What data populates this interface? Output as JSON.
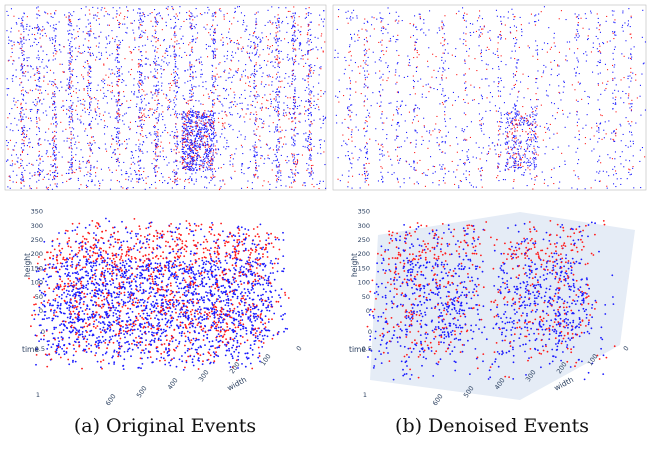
{
  "figure": {
    "panels": [
      {
        "caption": "(a) Original Events",
        "plot": {
          "vertical_label": "height",
          "vertical_ticks": [
            "0",
            "50",
            "100",
            "150",
            "200",
            "250",
            "300",
            "350"
          ],
          "time_label": "time",
          "time_ticks": [
            "0",
            "0.5",
            "1"
          ],
          "width_label": "width",
          "width_ticks": [
            "0",
            "100",
            "200",
            "300",
            "400",
            "500",
            "600"
          ]
        }
      },
      {
        "caption": "(b) Denoised Events",
        "plot": {
          "vertical_label": "height",
          "vertical_ticks": [
            "0",
            "50",
            "100",
            "150",
            "200",
            "250",
            "300",
            "350"
          ],
          "time_label": "time",
          "time_ticks": [
            "0",
            "0.5",
            "1"
          ],
          "width_label": "width",
          "width_ticks": [
            "0",
            "100",
            "200",
            "300",
            "400",
            "500",
            "600"
          ]
        }
      }
    ]
  }
}
